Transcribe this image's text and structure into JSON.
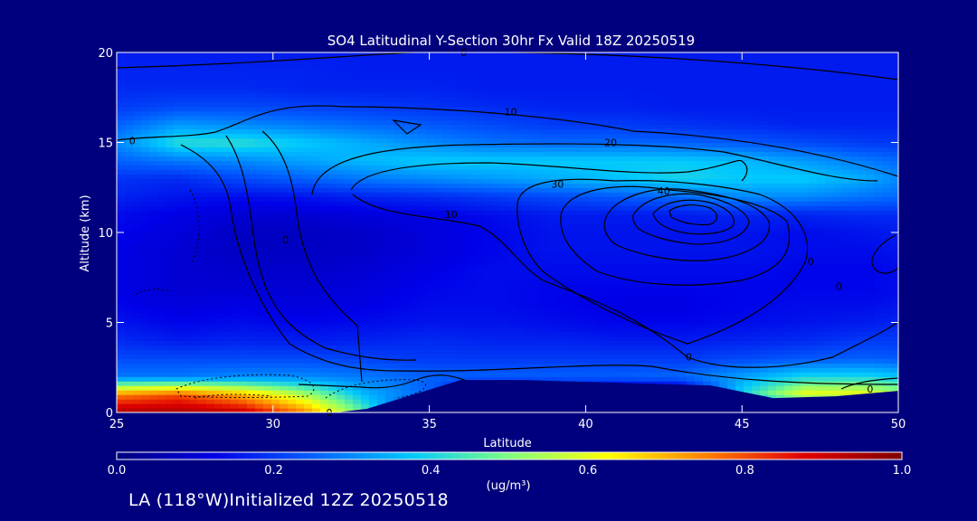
{
  "chart_data": {
    "type": "heatmap",
    "title": "SO4 Latitudinal Y-Section 30hr  Fx Valid 18Z 20250519",
    "xlabel": "Latitude",
    "ylabel": "Altitude (km)",
    "xlim": [
      25,
      50
    ],
    "ylim": [
      0,
      20
    ],
    "x_ticks": [
      "25",
      "30",
      "35",
      "40",
      "45",
      "50"
    ],
    "y_ticks": [
      "0",
      "5",
      "10",
      "15",
      "20"
    ],
    "colorbar": {
      "label": "(ug/m³)",
      "min": 0.0,
      "max": 1.0,
      "ticks": [
        "0.0",
        "0.2",
        "0.4",
        "0.6",
        "0.8",
        "1.0"
      ],
      "colors": [
        "#00007f",
        "#0000e8",
        "#0060ff",
        "#00c8ff",
        "#7fff7f",
        "#ffff00",
        "#ff8000",
        "#e00000",
        "#7f0000"
      ]
    },
    "lat": [
      25,
      27,
      29,
      31,
      33,
      35,
      37,
      39,
      41,
      43,
      45,
      47,
      49,
      50
    ],
    "alt": [
      0,
      1,
      2,
      3,
      4,
      5,
      6,
      7,
      8,
      9,
      10,
      11,
      12,
      13,
      14,
      15,
      16,
      17,
      18,
      19,
      20
    ],
    "values": [
      [
        0.95,
        0.95,
        0.92,
        0.75,
        0.45,
        0.0,
        0.0,
        0.0,
        0.0,
        0.0,
        0.0,
        0.0,
        0.0,
        0.0
      ],
      [
        0.75,
        0.8,
        0.7,
        0.55,
        0.35,
        0.25,
        0.0,
        0.0,
        0.0,
        0.0,
        0.4,
        0.62,
        0.62,
        0.55
      ],
      [
        0.28,
        0.28,
        0.3,
        0.3,
        0.28,
        0.25,
        0.25,
        0.25,
        0.25,
        0.26,
        0.33,
        0.4,
        0.4,
        0.38
      ],
      [
        0.22,
        0.22,
        0.22,
        0.22,
        0.21,
        0.2,
        0.2,
        0.2,
        0.2,
        0.2,
        0.22,
        0.24,
        0.25,
        0.24
      ],
      [
        0.18,
        0.16,
        0.17,
        0.16,
        0.17,
        0.18,
        0.17,
        0.17,
        0.16,
        0.16,
        0.17,
        0.18,
        0.2,
        0.2
      ],
      [
        0.15,
        0.13,
        0.14,
        0.13,
        0.14,
        0.15,
        0.15,
        0.14,
        0.13,
        0.13,
        0.14,
        0.15,
        0.16,
        0.17
      ],
      [
        0.13,
        0.11,
        0.12,
        0.11,
        0.12,
        0.14,
        0.14,
        0.13,
        0.12,
        0.12,
        0.13,
        0.14,
        0.14,
        0.15
      ],
      [
        0.12,
        0.1,
        0.1,
        0.1,
        0.11,
        0.13,
        0.14,
        0.13,
        0.13,
        0.13,
        0.13,
        0.13,
        0.13,
        0.14
      ],
      [
        0.12,
        0.1,
        0.09,
        0.09,
        0.1,
        0.12,
        0.14,
        0.14,
        0.14,
        0.14,
        0.14,
        0.13,
        0.13,
        0.14
      ],
      [
        0.12,
        0.1,
        0.08,
        0.08,
        0.09,
        0.11,
        0.13,
        0.15,
        0.15,
        0.15,
        0.15,
        0.14,
        0.14,
        0.15
      ],
      [
        0.13,
        0.11,
        0.08,
        0.08,
        0.09,
        0.11,
        0.13,
        0.15,
        0.15,
        0.15,
        0.15,
        0.14,
        0.15,
        0.16
      ],
      [
        0.14,
        0.12,
        0.1,
        0.1,
        0.11,
        0.12,
        0.14,
        0.16,
        0.16,
        0.16,
        0.17,
        0.17,
        0.18,
        0.18
      ],
      [
        0.17,
        0.15,
        0.14,
        0.15,
        0.17,
        0.18,
        0.2,
        0.22,
        0.24,
        0.26,
        0.3,
        0.3,
        0.27,
        0.26
      ],
      [
        0.19,
        0.18,
        0.22,
        0.25,
        0.28,
        0.3,
        0.32,
        0.34,
        0.37,
        0.4,
        0.38,
        0.38,
        0.34,
        0.3
      ],
      [
        0.25,
        0.28,
        0.3,
        0.33,
        0.36,
        0.38,
        0.38,
        0.38,
        0.38,
        0.38,
        0.36,
        0.32,
        0.28,
        0.26
      ],
      [
        0.3,
        0.42,
        0.42,
        0.38,
        0.34,
        0.3,
        0.27,
        0.26,
        0.26,
        0.25,
        0.24,
        0.22,
        0.2,
        0.2
      ],
      [
        0.25,
        0.32,
        0.3,
        0.28,
        0.26,
        0.24,
        0.22,
        0.2,
        0.2,
        0.19,
        0.18,
        0.17,
        0.17,
        0.17
      ],
      [
        0.2,
        0.22,
        0.22,
        0.21,
        0.2,
        0.19,
        0.18,
        0.17,
        0.17,
        0.16,
        0.16,
        0.16,
        0.16,
        0.16
      ],
      [
        0.18,
        0.18,
        0.18,
        0.17,
        0.17,
        0.17,
        0.16,
        0.16,
        0.16,
        0.16,
        0.16,
        0.16,
        0.16,
        0.16
      ],
      [
        0.17,
        0.17,
        0.17,
        0.17,
        0.16,
        0.16,
        0.16,
        0.16,
        0.16,
        0.16,
        0.16,
        0.16,
        0.16,
        0.16
      ],
      [
        0.16,
        0.16,
        0.16,
        0.16,
        0.16,
        0.16,
        0.16,
        0.16,
        0.16,
        0.16,
        0.16,
        0.16,
        0.16,
        0.16
      ]
    ],
    "terrain": [
      [
        25,
        0
      ],
      [
        32,
        0
      ],
      [
        33,
        0.2
      ],
      [
        36,
        1.8
      ],
      [
        38,
        1.8
      ],
      [
        44,
        1.5
      ],
      [
        46,
        0.8
      ],
      [
        48,
        0.9
      ],
      [
        50,
        1.2
      ]
    ],
    "contour_labels": [
      {
        "text": "0",
        "lat": 36.1,
        "alt": 20.0
      },
      {
        "text": "0",
        "lat": 25.5,
        "alt": 15.1
      },
      {
        "text": "10",
        "lat": 37.6,
        "alt": 16.7
      },
      {
        "text": "20",
        "lat": 40.8,
        "alt": 15.0
      },
      {
        "text": "30",
        "lat": 39.1,
        "alt": 12.7
      },
      {
        "text": "40",
        "lat": 42.5,
        "alt": 12.3
      },
      {
        "text": "10",
        "lat": 35.7,
        "alt": 11.0
      },
      {
        "text": "0",
        "lat": 30.4,
        "alt": 9.6
      },
      {
        "text": "0",
        "lat": 31.8,
        "alt": 0.0
      },
      {
        "text": "0",
        "lat": 43.3,
        "alt": 3.1
      },
      {
        "text": "0",
        "lat": 47.2,
        "alt": 8.4
      },
      {
        "text": "0",
        "lat": 48.1,
        "alt": 7.0
      },
      {
        "text": "0",
        "lat": 49.1,
        "alt": 1.3
      }
    ]
  },
  "footer": "LA (118°W)Initialized 12Z 20250518"
}
